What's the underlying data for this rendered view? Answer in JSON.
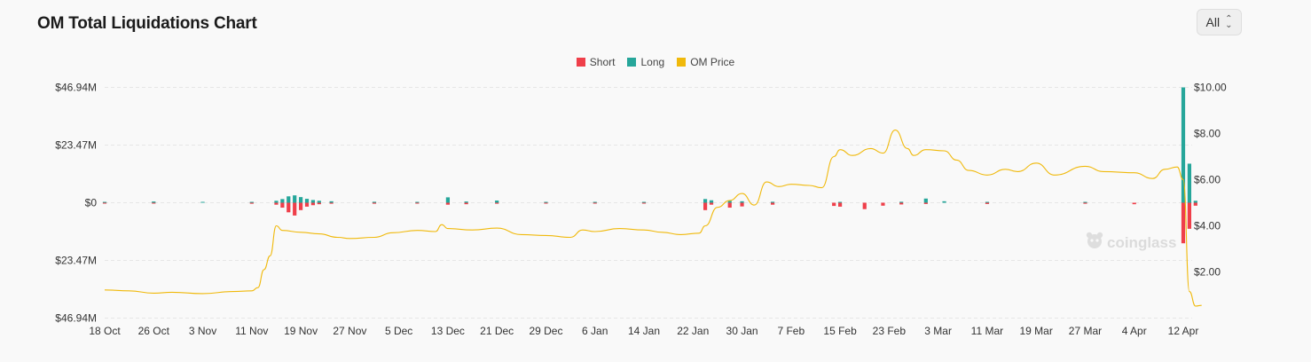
{
  "header": {
    "title": "OM Total Liquidations Chart",
    "range_select": {
      "value": "All",
      "icon": "chevron-up-down-icon"
    }
  },
  "watermark": {
    "text": "coinglass",
    "icon": "coinglass-logo-icon"
  },
  "colors": {
    "short": "#ef3f4a",
    "long": "#26a69a",
    "price": "#f0b90b",
    "grid": "#e6e6e6"
  },
  "chart_data": {
    "type": "bar",
    "title": "OM Total Liquidations Chart",
    "legend": {
      "position": "top-center",
      "items": [
        {
          "label": "Short",
          "color": "#ef3f4a"
        },
        {
          "label": "Long",
          "color": "#26a69a"
        },
        {
          "label": "OM Price",
          "color": "#f0b90b"
        }
      ]
    },
    "grid": true,
    "x_ticks": [
      "18 Oct",
      "26 Oct",
      "3 Nov",
      "11 Nov",
      "19 Nov",
      "27 Nov",
      "5 Dec",
      "13 Dec",
      "21 Dec",
      "29 Dec",
      "6 Jan",
      "14 Jan",
      "22 Jan",
      "30 Jan",
      "7 Feb",
      "15 Feb",
      "23 Feb",
      "3 Mar",
      "11 Mar",
      "19 Mar",
      "27 Mar",
      "4 Apr",
      "12 Apr"
    ],
    "y_left": {
      "ticks": [
        "$46.94M",
        "$23.47M",
        "$0",
        "$23.47M",
        "$46.94M"
      ],
      "range_musd": [
        -46.94,
        46.94
      ]
    },
    "y_right": {
      "ticks": [
        "$10.00",
        "$8.00",
        "$6.00",
        "$4.00",
        "$2.00"
      ],
      "range_usd": [
        0,
        10
      ]
    },
    "series": [
      {
        "name": "Long",
        "unit": "USD millions",
        "points": [
          [
            "18 Oct",
            0.2
          ],
          [
            "26 Oct",
            0.5
          ],
          [
            "3 Nov",
            0.2
          ],
          [
            "11 Nov",
            0.3
          ],
          [
            "15 Nov",
            0.8
          ],
          [
            "16 Nov",
            1.5
          ],
          [
            "17 Nov",
            2.6
          ],
          [
            "18 Nov",
            3.0
          ],
          [
            "19 Nov",
            2.3
          ],
          [
            "20 Nov",
            1.6
          ],
          [
            "21 Nov",
            1.1
          ],
          [
            "22 Nov",
            0.8
          ],
          [
            "24 Nov",
            0.6
          ],
          [
            "1 Dec",
            0.4
          ],
          [
            "8 Dec",
            0.3
          ],
          [
            "13 Dec",
            2.2
          ],
          [
            "16 Dec",
            0.5
          ],
          [
            "21 Dec",
            0.9
          ],
          [
            "29 Dec",
            0.3
          ],
          [
            "6 Jan",
            0.2
          ],
          [
            "14 Jan",
            0.3
          ],
          [
            "24 Jan",
            1.5
          ],
          [
            "25 Jan",
            1.0
          ],
          [
            "28 Jan",
            0.8
          ],
          [
            "30 Jan",
            0.6
          ],
          [
            "4 Feb",
            0.4
          ],
          [
            "15 Feb",
            0.3
          ],
          [
            "25 Feb",
            0.4
          ],
          [
            "1 Mar",
            1.7
          ],
          [
            "4 Mar",
            0.6
          ],
          [
            "11 Mar",
            0.3
          ],
          [
            "27 Mar",
            0.2
          ],
          [
            "12 Apr",
            46.94
          ],
          [
            "13 Apr",
            15.9
          ],
          [
            "14 Apr",
            0.8
          ]
        ]
      },
      {
        "name": "Short",
        "unit": "USD millions",
        "points": [
          [
            "18 Oct",
            0.2
          ],
          [
            "26 Oct",
            0.2
          ],
          [
            "11 Nov",
            0.4
          ],
          [
            "15 Nov",
            0.8
          ],
          [
            "16 Nov",
            2.0
          ],
          [
            "17 Nov",
            3.9
          ],
          [
            "18 Nov",
            5.2
          ],
          [
            "19 Nov",
            3.0
          ],
          [
            "20 Nov",
            1.6
          ],
          [
            "21 Nov",
            1.0
          ],
          [
            "22 Nov",
            0.6
          ],
          [
            "24 Nov",
            0.4
          ],
          [
            "1 Dec",
            0.4
          ],
          [
            "8 Dec",
            0.3
          ],
          [
            "13 Dec",
            0.8
          ],
          [
            "16 Dec",
            0.6
          ],
          [
            "21 Dec",
            0.4
          ],
          [
            "29 Dec",
            0.3
          ],
          [
            "6 Jan",
            0.3
          ],
          [
            "14 Jan",
            0.3
          ],
          [
            "24 Jan",
            3.0
          ],
          [
            "25 Jan",
            0.8
          ],
          [
            "28 Jan",
            2.0
          ],
          [
            "30 Jan",
            1.5
          ],
          [
            "4 Feb",
            0.8
          ],
          [
            "14 Feb",
            1.3
          ],
          [
            "15 Feb",
            1.6
          ],
          [
            "19 Feb",
            2.6
          ],
          [
            "22 Feb",
            1.2
          ],
          [
            "25 Feb",
            0.7
          ],
          [
            "1 Mar",
            0.5
          ],
          [
            "11 Mar",
            0.5
          ],
          [
            "27 Mar",
            0.4
          ],
          [
            "4 Apr",
            0.6
          ],
          [
            "12 Apr",
            16.5
          ],
          [
            "13 Apr",
            10.6
          ],
          [
            "14 Apr",
            1.2
          ]
        ]
      },
      {
        "name": "OM Price",
        "unit": "USD",
        "points": [
          [
            "18 Oct",
            1.22
          ],
          [
            "22 Oct",
            1.18
          ],
          [
            "26 Oct",
            1.08
          ],
          [
            "29 Oct",
            1.12
          ],
          [
            "3 Nov",
            1.06
          ],
          [
            "8 Nov",
            1.15
          ],
          [
            "11 Nov",
            1.18
          ],
          [
            "12 Nov",
            1.32
          ],
          [
            "13 Nov",
            2.1
          ],
          [
            "14 Nov",
            2.7
          ],
          [
            "15 Nov",
            4.0
          ],
          [
            "16 Nov",
            3.8
          ],
          [
            "19 Nov",
            3.72
          ],
          [
            "22 Nov",
            3.65
          ],
          [
            "25 Nov",
            3.5
          ],
          [
            "27 Nov",
            3.45
          ],
          [
            "1 Dec",
            3.5
          ],
          [
            "4 Dec",
            3.7
          ],
          [
            "8 Dec",
            3.8
          ],
          [
            "11 Dec",
            3.75
          ],
          [
            "12 Dec",
            4.05
          ],
          [
            "13 Dec",
            3.88
          ],
          [
            "17 Dec",
            3.82
          ],
          [
            "21 Dec",
            3.9
          ],
          [
            "25 Dec",
            3.62
          ],
          [
            "29 Dec",
            3.58
          ],
          [
            "2 Jan",
            3.5
          ],
          [
            "4 Jan",
            3.82
          ],
          [
            "6 Jan",
            3.75
          ],
          [
            "10 Jan",
            3.88
          ],
          [
            "14 Jan",
            3.82
          ],
          [
            "17 Jan",
            3.72
          ],
          [
            "20 Jan",
            3.62
          ],
          [
            "23 Jan",
            3.68
          ],
          [
            "24 Jan",
            4.0
          ],
          [
            "26 Jan",
            4.8
          ],
          [
            "28 Jan",
            5.1
          ],
          [
            "30 Jan",
            5.4
          ],
          [
            "1 Feb",
            4.9
          ],
          [
            "3 Feb",
            5.9
          ],
          [
            "5 Feb",
            5.7
          ],
          [
            "7 Feb",
            5.8
          ],
          [
            "10 Feb",
            5.75
          ],
          [
            "12 Feb",
            5.65
          ],
          [
            "14 Feb",
            7.0
          ],
          [
            "15 Feb",
            7.3
          ],
          [
            "17 Feb",
            7.05
          ],
          [
            "20 Feb",
            7.35
          ],
          [
            "22 Feb",
            7.15
          ],
          [
            "24 Feb",
            8.15
          ],
          [
            "26 Feb",
            7.35
          ],
          [
            "27 Feb",
            7.05
          ],
          [
            "1 Mar",
            7.3
          ],
          [
            "4 Mar",
            7.25
          ],
          [
            "6 Mar",
            6.85
          ],
          [
            "8 Mar",
            6.4
          ],
          [
            "11 Mar",
            6.2
          ],
          [
            "14 Mar",
            6.45
          ],
          [
            "16 Mar",
            6.35
          ],
          [
            "19 Mar",
            6.72
          ],
          [
            "22 Mar",
            6.2
          ],
          [
            "27 Mar",
            6.58
          ],
          [
            "30 Mar",
            6.35
          ],
          [
            "4 Apr",
            6.3
          ],
          [
            "7 Apr",
            6.05
          ],
          [
            "9 Apr",
            6.45
          ],
          [
            "11 Apr",
            6.55
          ],
          [
            "12 Apr",
            6.0
          ],
          [
            "13 Apr",
            1.15
          ],
          [
            "14 Apr",
            0.52
          ],
          [
            "15 Apr",
            0.55
          ]
        ]
      }
    ]
  }
}
